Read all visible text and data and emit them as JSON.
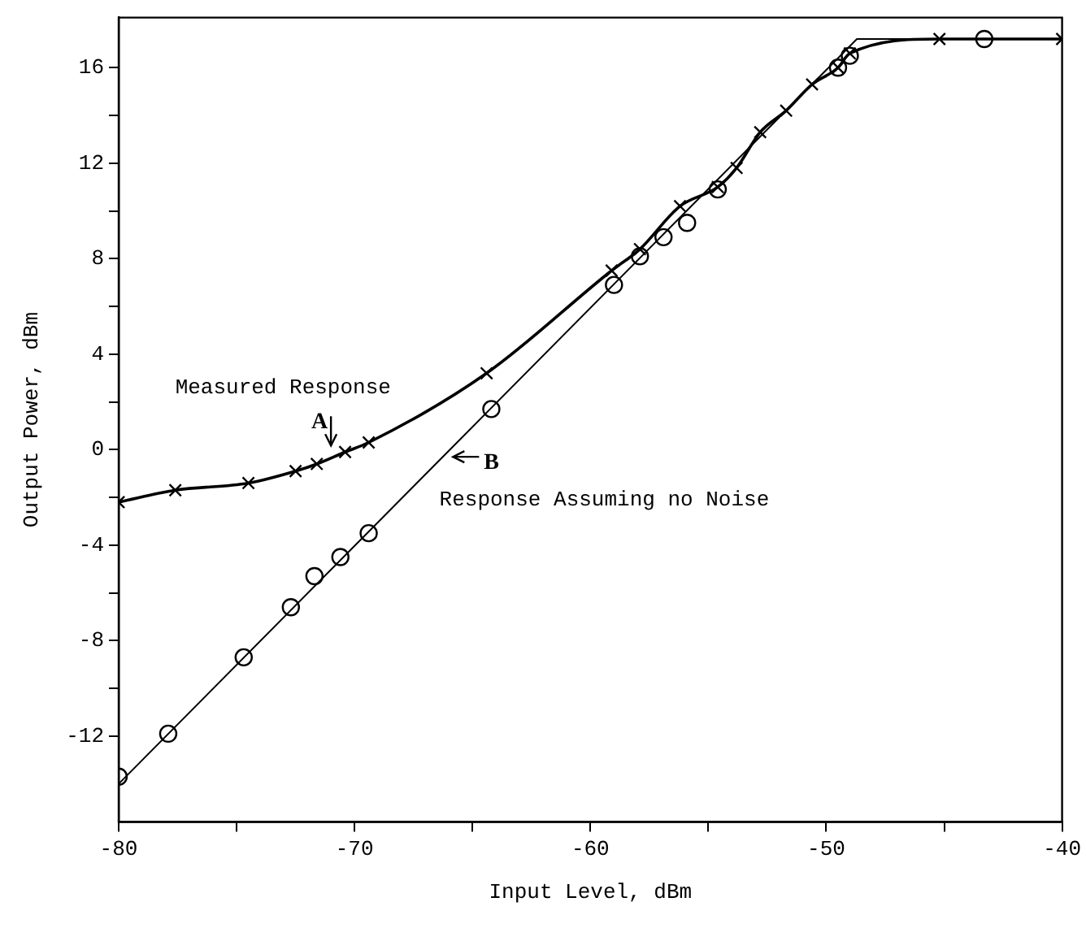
{
  "chart_data": {
    "type": "line",
    "xlabel": "Input Level, dBm",
    "ylabel": "Output Power, dBm",
    "xlim": [
      -80,
      -40
    ],
    "ylim": [
      -15.6,
      18.1
    ],
    "xticks": [
      -80,
      {
        "value": -75,
        "label": null
      },
      -70,
      {
        "value": -65,
        "label": null
      },
      -60,
      {
        "value": -55,
        "label": null
      },
      -50,
      {
        "value": -45,
        "label": null
      },
      -40
    ],
    "yticks": [
      -12,
      {
        "value": -10,
        "label": null
      },
      -8,
      {
        "value": -6,
        "label": null
      },
      -4,
      {
        "value": -2,
        "label": null
      },
      0,
      {
        "value": 2,
        "label": null
      },
      4,
      {
        "value": 6,
        "label": null
      },
      8,
      {
        "value": 10,
        "label": null
      },
      12,
      {
        "value": 14,
        "label": null
      },
      16
    ],
    "series": [
      {
        "marker": "cross",
        "color": "#000000",
        "x": [
          -80,
          -77.6,
          -74.5,
          -72.5,
          -71.6,
          -70.4,
          -69.4,
          -64.4,
          -59.1,
          -57.9,
          -56.2,
          -54.6,
          -53.8,
          -52.8,
          -51.7,
          -50.6,
          -49.5,
          -49,
          -45.2,
          -40
        ],
        "values": [
          -2.2,
          -1.7,
          -1.4,
          -0.9,
          -0.6,
          -0.1,
          0.3,
          3.2,
          7.5,
          8.4,
          10.2,
          11.0,
          11.8,
          13.3,
          14.2,
          15.3,
          16.0,
          16.6,
          17.2,
          17.2
        ]
      },
      {
        "marker": "none",
        "color": "#000000",
        "x": [
          -80,
          -48.7,
          -40
        ],
        "values": [
          -14,
          17.2,
          17.2
        ]
      },
      {
        "type": "scatter",
        "marker": "circle",
        "color": "#000000",
        "x": [
          -80,
          -77.9,
          -74.7,
          -72.7,
          -71.7,
          -70.6,
          -69.4,
          -64.2,
          -59.0,
          -57.9,
          -56.9,
          -55.9,
          -54.6,
          -49.5,
          -49,
          -43.3
        ],
        "values": [
          -13.7,
          -11.9,
          -8.7,
          -6.6,
          -5.3,
          -4.5,
          -3.5,
          1.7,
          6.9,
          8.1,
          8.9,
          9.5,
          10.9,
          16.0,
          16.5,
          17.2
        ]
      }
    ],
    "annotations": [
      "Measured Response",
      "Response Assuming no Noise",
      {
        "text": "A",
        "x": -71.0,
        "y": -0.1
      },
      {
        "text": "B",
        "x": -66.1,
        "y": -0.3
      }
    ]
  }
}
